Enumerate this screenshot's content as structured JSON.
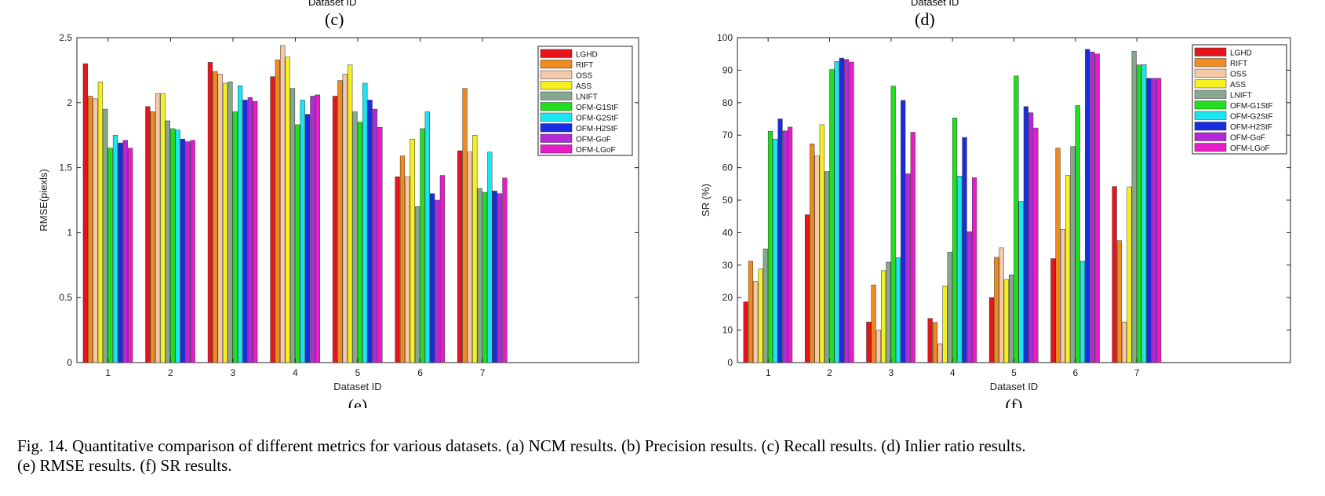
{
  "top_labels": {
    "left_axis": "Dataset ID",
    "left_sub": "(c)",
    "right_axis": "Dataset ID",
    "right_sub": "(d)"
  },
  "series_colors": [
    "#e8141b",
    "#f08a1c",
    "#f5c8a8",
    "#f7f01f",
    "#86a891",
    "#1fe01f",
    "#19e6f0",
    "#1a2ce0",
    "#b528d8",
    "#e61cc8"
  ],
  "chart_data": [
    {
      "type": "bar",
      "sublabel": "(e)",
      "xlabel": "Dataset ID",
      "ylabel": "RMSE(piexls)",
      "categories": [
        "1",
        "2",
        "3",
        "4",
        "5",
        "6",
        "7"
      ],
      "xlim": [
        0.5,
        9.5
      ],
      "ylim": [
        0,
        2.5
      ],
      "yticks": [
        "0",
        "0.5",
        "1",
        "1.5",
        "2",
        "2.5"
      ],
      "ytick_values": [
        0,
        0.5,
        1,
        1.5,
        2,
        2.5
      ],
      "legend_position": "top-right",
      "series": [
        {
          "name": "LGHD",
          "values": [
            2.3,
            1.97,
            2.31,
            2.2,
            2.05,
            1.43,
            1.63
          ]
        },
        {
          "name": "RIFT",
          "values": [
            2.05,
            1.93,
            2.24,
            2.33,
            2.17,
            1.59,
            2.11
          ]
        },
        {
          "name": "OSS",
          "values": [
            2.03,
            2.07,
            2.22,
            2.44,
            2.22,
            1.43,
            1.62
          ]
        },
        {
          "name": "ASS",
          "values": [
            2.16,
            2.07,
            2.15,
            2.35,
            2.29,
            1.72,
            1.75
          ]
        },
        {
          "name": "LNIFT",
          "values": [
            1.95,
            1.86,
            2.16,
            2.11,
            1.93,
            1.2,
            1.34
          ]
        },
        {
          "name": "OFM-G1StF",
          "values": [
            1.65,
            1.8,
            1.93,
            1.83,
            1.85,
            1.8,
            1.31
          ]
        },
        {
          "name": "OFM-G2StF",
          "values": [
            1.75,
            1.79,
            2.13,
            2.02,
            2.15,
            1.93,
            1.62
          ]
        },
        {
          "name": "OFM-H2StF",
          "values": [
            1.69,
            1.72,
            2.02,
            1.91,
            2.02,
            1.3,
            1.32
          ]
        },
        {
          "name": "OFM-GoF",
          "values": [
            1.71,
            1.7,
            2.04,
            2.05,
            1.95,
            1.25,
            1.3
          ]
        },
        {
          "name": "OFM-LGoF",
          "values": [
            1.65,
            1.71,
            2.01,
            2.06,
            1.81,
            1.44,
            1.42
          ]
        }
      ]
    },
    {
      "type": "bar",
      "sublabel": "(f)",
      "xlabel": "Dataset ID",
      "ylabel": "SR (%)",
      "categories": [
        "1",
        "2",
        "3",
        "4",
        "5",
        "6",
        "7"
      ],
      "xlim": [
        0.5,
        9.5
      ],
      "ylim": [
        0,
        100
      ],
      "yticks": [
        "0",
        "10",
        "20",
        "30",
        "40",
        "50",
        "60",
        "70",
        "80",
        "90",
        "100"
      ],
      "ytick_values": [
        0,
        10,
        20,
        30,
        40,
        50,
        60,
        70,
        80,
        90,
        100
      ],
      "legend_position": "top-right",
      "series": [
        {
          "name": "LGHD",
          "values": [
            18.7,
            45.5,
            12.5,
            13.6,
            20.0,
            32.0,
            54.2
          ]
        },
        {
          "name": "RIFT",
          "values": [
            31.2,
            67.3,
            23.9,
            12.4,
            32.4,
            66.0,
            37.5
          ]
        },
        {
          "name": "OSS",
          "values": [
            25.0,
            63.6,
            10.0,
            5.8,
            35.3,
            41.0,
            12.5
          ]
        },
        {
          "name": "ASS",
          "values": [
            28.8,
            73.2,
            28.3,
            23.6,
            25.6,
            57.6,
            54.1
          ]
        },
        {
          "name": "LNIFT",
          "values": [
            35.0,
            58.8,
            30.9,
            34.0,
            27.0,
            66.5,
            95.8
          ]
        },
        {
          "name": "OFM-G1StF",
          "values": [
            71.2,
            90.2,
            85.1,
            75.3,
            88.2,
            79.1,
            91.6
          ]
        },
        {
          "name": "OFM-G2StF",
          "values": [
            68.8,
            92.7,
            32.3,
            57.4,
            49.6,
            31.2,
            91.7
          ]
        },
        {
          "name": "OFM-H2StF",
          "values": [
            75.0,
            93.7,
            80.7,
            69.3,
            78.8,
            96.4,
            87.5
          ]
        },
        {
          "name": "OFM-GoF",
          "values": [
            71.3,
            93.3,
            58.1,
            40.3,
            76.9,
            95.6,
            87.5
          ]
        },
        {
          "name": "OFM-LGoF",
          "values": [
            72.5,
            92.5,
            70.9,
            56.9,
            72.2,
            95.0,
            87.5
          ]
        }
      ]
    }
  ],
  "caption": {
    "line1": "Fig. 14.   Quantitative comparison of different metrics for various datasets. (a) NCM results. (b) Precision results. (c) Recall results. (d) Inlier ratio results.",
    "line2": "(e) RMSE results. (f) SR results."
  }
}
